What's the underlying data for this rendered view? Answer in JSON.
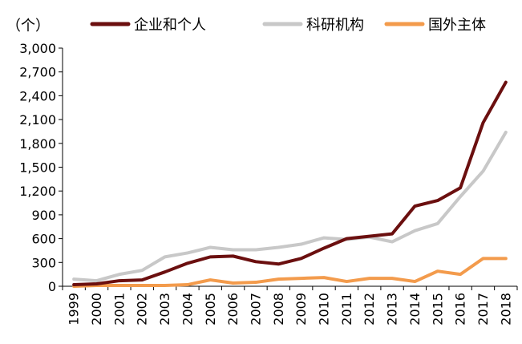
{
  "chart_data": {
    "type": "line",
    "unit_label": "（个）",
    "x": [
      "1999",
      "2000",
      "2001",
      "2002",
      "2003",
      "2004",
      "2005",
      "2006",
      "2007",
      "2008",
      "2009",
      "2010",
      "2011",
      "2012",
      "2013",
      "2014",
      "2015",
      "2016",
      "2017",
      "2018"
    ],
    "ylim": [
      0,
      3000
    ],
    "yticks": [
      0,
      300,
      600,
      900,
      1200,
      1500,
      1800,
      2100,
      2400,
      2700,
      3000
    ],
    "ytick_labels": [
      "0",
      "300",
      "600",
      "900",
      "1,200",
      "1,500",
      "1,800",
      "2,100",
      "2,400",
      "2,700",
      "3,000"
    ],
    "legend_position": "top",
    "grid": false,
    "series": [
      {
        "name": "企业和个人",
        "color": "#6b0f0f",
        "values": [
          20,
          30,
          70,
          80,
          180,
          290,
          370,
          380,
          310,
          280,
          350,
          480,
          600,
          630,
          660,
          1010,
          1080,
          1240,
          2060,
          2570
        ]
      },
      {
        "name": "科研机构",
        "color": "#c8c8c8",
        "values": [
          90,
          70,
          150,
          200,
          370,
          420,
          490,
          460,
          460,
          490,
          530,
          610,
          590,
          620,
          560,
          700,
          790,
          1130,
          1450,
          1940
        ]
      },
      {
        "name": "国外主体",
        "color": "#f39b4c",
        "values": [
          0,
          10,
          10,
          10,
          10,
          20,
          80,
          40,
          50,
          90,
          100,
          110,
          60,
          100,
          100,
          60,
          190,
          150,
          350,
          350
        ]
      }
    ]
  }
}
